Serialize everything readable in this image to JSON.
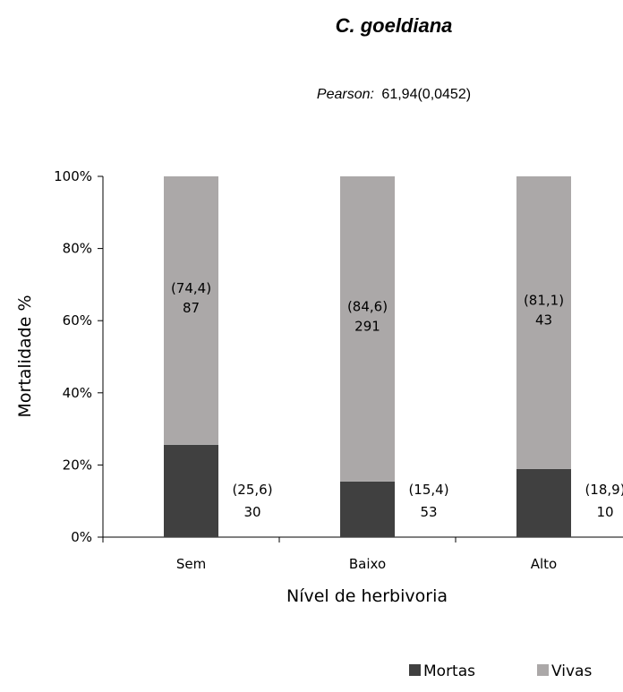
{
  "chart_data": {
    "type": "stacked-bar-percent",
    "title": "C. goeldiana",
    "subtitle": {
      "label": "Pearson:",
      "value": "61,94(0,0452)"
    },
    "xlabel": "Nível de herbivoria",
    "ylabel": "Mortalidade %",
    "ylim": [
      0,
      100
    ],
    "y_ticks": [
      0,
      20,
      40,
      60,
      80,
      100
    ],
    "y_tick_labels": [
      "0%",
      "20%",
      "40%",
      "60%",
      "80%",
      "100%"
    ],
    "categories": [
      "Sem",
      "Baixo",
      "Alto"
    ],
    "series": [
      {
        "name": "Mortas",
        "color": "#404040",
        "values": [
          25.6,
          15.4,
          18.9
        ],
        "pct_labels": [
          "(25,6)",
          "(15,4)",
          "(18,9)"
        ],
        "counts": [
          "30",
          "53",
          "10"
        ]
      },
      {
        "name": "Vivas",
        "color": "#aba8a8",
        "values": [
          74.4,
          84.6,
          81.1
        ],
        "pct_labels": [
          "(74,4)",
          "(84,6)",
          "(81,1)"
        ],
        "counts": [
          "87",
          "291",
          "43"
        ]
      }
    ],
    "grid": false,
    "legend_position": "bottom-right"
  }
}
